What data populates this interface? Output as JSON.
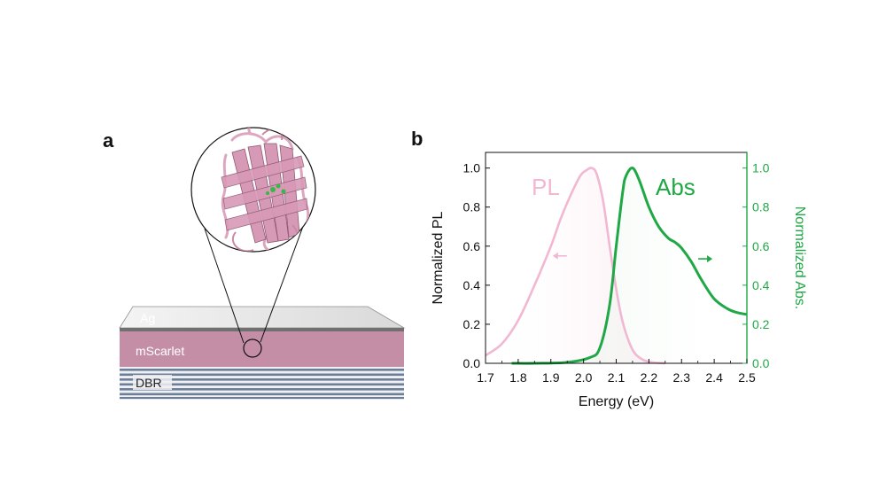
{
  "panel_a": {
    "label": "a",
    "layers": {
      "ag": "Ag",
      "mscarlet": "mScarlet",
      "dbr": "DBR"
    },
    "colors": {
      "ag": "#8a8a8a",
      "mscarlet": "#c48fa6",
      "dbr_dark": "#6d7f96",
      "dbr_light": "#eef0f3",
      "protein": "#dda6bf"
    }
  },
  "panel_b": {
    "label": "b"
  },
  "chart_data": {
    "type": "line",
    "xlabel": "Energy (eV)",
    "ylabel_left": "Normalized PL",
    "ylabel_right": "Normalized Abs.",
    "xlim": [
      1.7,
      2.5
    ],
    "ylim": [
      0,
      1.08
    ],
    "x_ticks": [
      "1.7",
      "1.8",
      "1.9",
      "2.0",
      "2.1",
      "2.2",
      "2.3",
      "2.4",
      "2.5"
    ],
    "y_ticks_left": [
      "0.0",
      "0.2",
      "0.4",
      "0.6",
      "0.8",
      "1.0"
    ],
    "y_ticks_right": [
      "0.0",
      "0.2",
      "0.4",
      "0.6",
      "0.8",
      "1.0"
    ],
    "grid": false,
    "series": [
      {
        "name": "PL",
        "color": "#f2b7d2",
        "axis": "left",
        "x": [
          1.7,
          1.75,
          1.8,
          1.85,
          1.9,
          1.93,
          1.96,
          1.99,
          2.01,
          2.025,
          2.04,
          2.06,
          2.08,
          2.1,
          2.12,
          2.15,
          2.18,
          2.21,
          2.25
        ],
        "y": [
          0.04,
          0.1,
          0.22,
          0.4,
          0.6,
          0.74,
          0.86,
          0.96,
          0.99,
          1.0,
          0.97,
          0.83,
          0.6,
          0.38,
          0.21,
          0.07,
          0.02,
          0.005,
          0.0
        ]
      },
      {
        "name": "Abs",
        "color": "#1fa845",
        "axis": "right",
        "x": [
          1.78,
          1.85,
          1.95,
          2.02,
          2.05,
          2.08,
          2.1,
          2.12,
          2.13,
          2.15,
          2.17,
          2.2,
          2.23,
          2.26,
          2.28,
          2.3,
          2.33,
          2.36,
          2.4,
          2.44,
          2.47,
          2.5
        ],
        "y": [
          0.0,
          0.0,
          0.005,
          0.03,
          0.08,
          0.3,
          0.6,
          0.88,
          0.96,
          1.0,
          0.94,
          0.8,
          0.7,
          0.64,
          0.62,
          0.59,
          0.52,
          0.43,
          0.33,
          0.28,
          0.26,
          0.25
        ]
      }
    ],
    "annotations": [
      {
        "text": "PL",
        "color": "#f2b7d2",
        "size": "large"
      },
      {
        "text": "Abs",
        "color": "#1fa845",
        "size": "large"
      }
    ],
    "arrows": [
      {
        "series": "PL",
        "direction": "left",
        "x": 1.93,
        "y": 0.55
      },
      {
        "series": "Abs",
        "direction": "right",
        "x": 2.37,
        "y": 0.535
      }
    ]
  }
}
